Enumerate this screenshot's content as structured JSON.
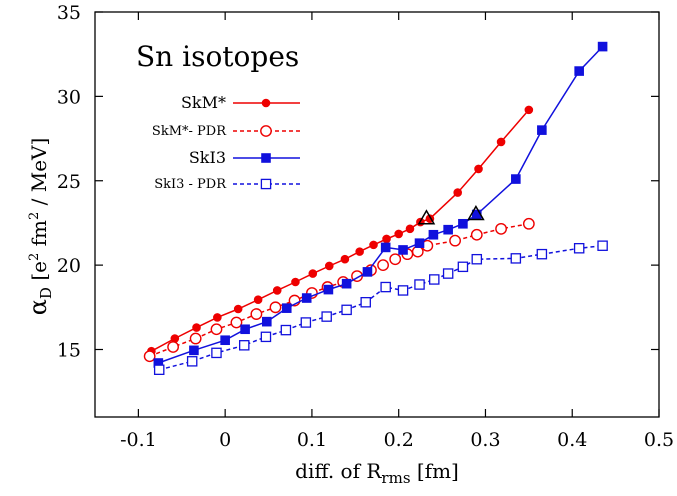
{
  "chart_data": {
    "type": "line",
    "title": "Sn isotopes",
    "xlabel": {
      "prefix": "diff. of  R",
      "sub": "rms",
      "suffix": "  [fm]"
    },
    "ylabel": {
      "alpha": "α",
      "sub": "D",
      "text1": " [e",
      "sup1": "2",
      "text2": " fm",
      "sup2": "2",
      "text3": " / MeV]"
    },
    "xlim": [
      -0.15,
      0.5
    ],
    "ylim": [
      11,
      35
    ],
    "xticks": [
      -0.1,
      0,
      0.1,
      0.2,
      0.3,
      0.4,
      0.5
    ],
    "xtick_labels": [
      "-0.1",
      "0",
      "0.1",
      "0.2",
      "0.3",
      "0.4",
      "0.5"
    ],
    "yticks": [
      15,
      20,
      25,
      30,
      35
    ],
    "ytick_labels": [
      "15",
      "20",
      "25",
      "30",
      "35"
    ],
    "grid": false,
    "legend_position": "upper-left",
    "series": [
      {
        "name": "SkM*",
        "color": "#ee0000",
        "style": "solid",
        "marker": "filled-circle",
        "x": [
          -0.085,
          -0.058,
          -0.033,
          -0.009,
          0.015,
          0.038,
          0.06,
          0.081,
          0.101,
          0.12,
          0.138,
          0.155,
          0.171,
          0.186,
          0.2,
          0.213,
          0.225,
          0.236,
          0.268,
          0.292,
          0.318,
          0.35
        ],
        "y": [
          14.9,
          15.65,
          16.3,
          16.9,
          17.4,
          17.95,
          18.5,
          19.0,
          19.5,
          19.95,
          20.35,
          20.8,
          21.2,
          21.55,
          21.85,
          22.15,
          22.55,
          22.75,
          24.3,
          25.7,
          27.3,
          29.2
        ]
      },
      {
        "name": "SkM*- PDR",
        "color": "#ee0000",
        "style": "dashed",
        "marker": "open-circle",
        "x": [
          -0.087,
          -0.06,
          -0.034,
          -0.01,
          0.013,
          0.036,
          0.058,
          0.08,
          0.1,
          0.118,
          0.136,
          0.152,
          0.168,
          0.182,
          0.196,
          0.21,
          0.222,
          0.233,
          0.265,
          0.29,
          0.318,
          0.35
        ],
        "y": [
          14.6,
          15.15,
          15.65,
          16.2,
          16.6,
          17.1,
          17.5,
          17.9,
          18.35,
          18.7,
          19.0,
          19.35,
          19.7,
          20.0,
          20.35,
          20.65,
          20.8,
          21.15,
          21.45,
          21.8,
          22.15,
          22.45
        ]
      },
      {
        "name": "SkI3",
        "color": "#1111dd",
        "style": "solid",
        "marker": "filled-square",
        "x": [
          -0.077,
          -0.036,
          0.0,
          0.023,
          0.048,
          0.071,
          0.094,
          0.119,
          0.14,
          0.164,
          0.185,
          0.205,
          0.224,
          0.24,
          0.257,
          0.274,
          0.29,
          0.335,
          0.365,
          0.408,
          0.435
        ],
        "y": [
          14.2,
          14.95,
          15.55,
          16.2,
          16.65,
          17.45,
          18.05,
          18.55,
          18.9,
          19.6,
          21.05,
          20.9,
          21.3,
          21.8,
          22.1,
          22.45,
          23.0,
          25.1,
          28.0,
          31.5,
          32.95
        ]
      },
      {
        "name": "SkI3 - PDR",
        "color": "#1111dd",
        "style": "dashed",
        "marker": "open-square",
        "x": [
          -0.076,
          -0.038,
          -0.01,
          0.022,
          0.047,
          0.07,
          0.093,
          0.117,
          0.14,
          0.162,
          0.185,
          0.205,
          0.224,
          0.241,
          0.257,
          0.274,
          0.29,
          0.335,
          0.365,
          0.408,
          0.435
        ],
        "y": [
          13.8,
          14.3,
          14.8,
          15.25,
          15.75,
          16.15,
          16.6,
          16.95,
          17.35,
          17.8,
          18.7,
          18.5,
          18.85,
          19.15,
          19.5,
          19.9,
          20.35,
          20.4,
          20.65,
          21.0,
          21.15
        ]
      }
    ],
    "annotations": [
      {
        "marker": "open-triangle",
        "color": "#000000",
        "x": 0.232,
        "y": 22.75
      },
      {
        "marker": "open-triangle",
        "color": "#000000",
        "x": 0.289,
        "y": 23.0
      }
    ]
  }
}
